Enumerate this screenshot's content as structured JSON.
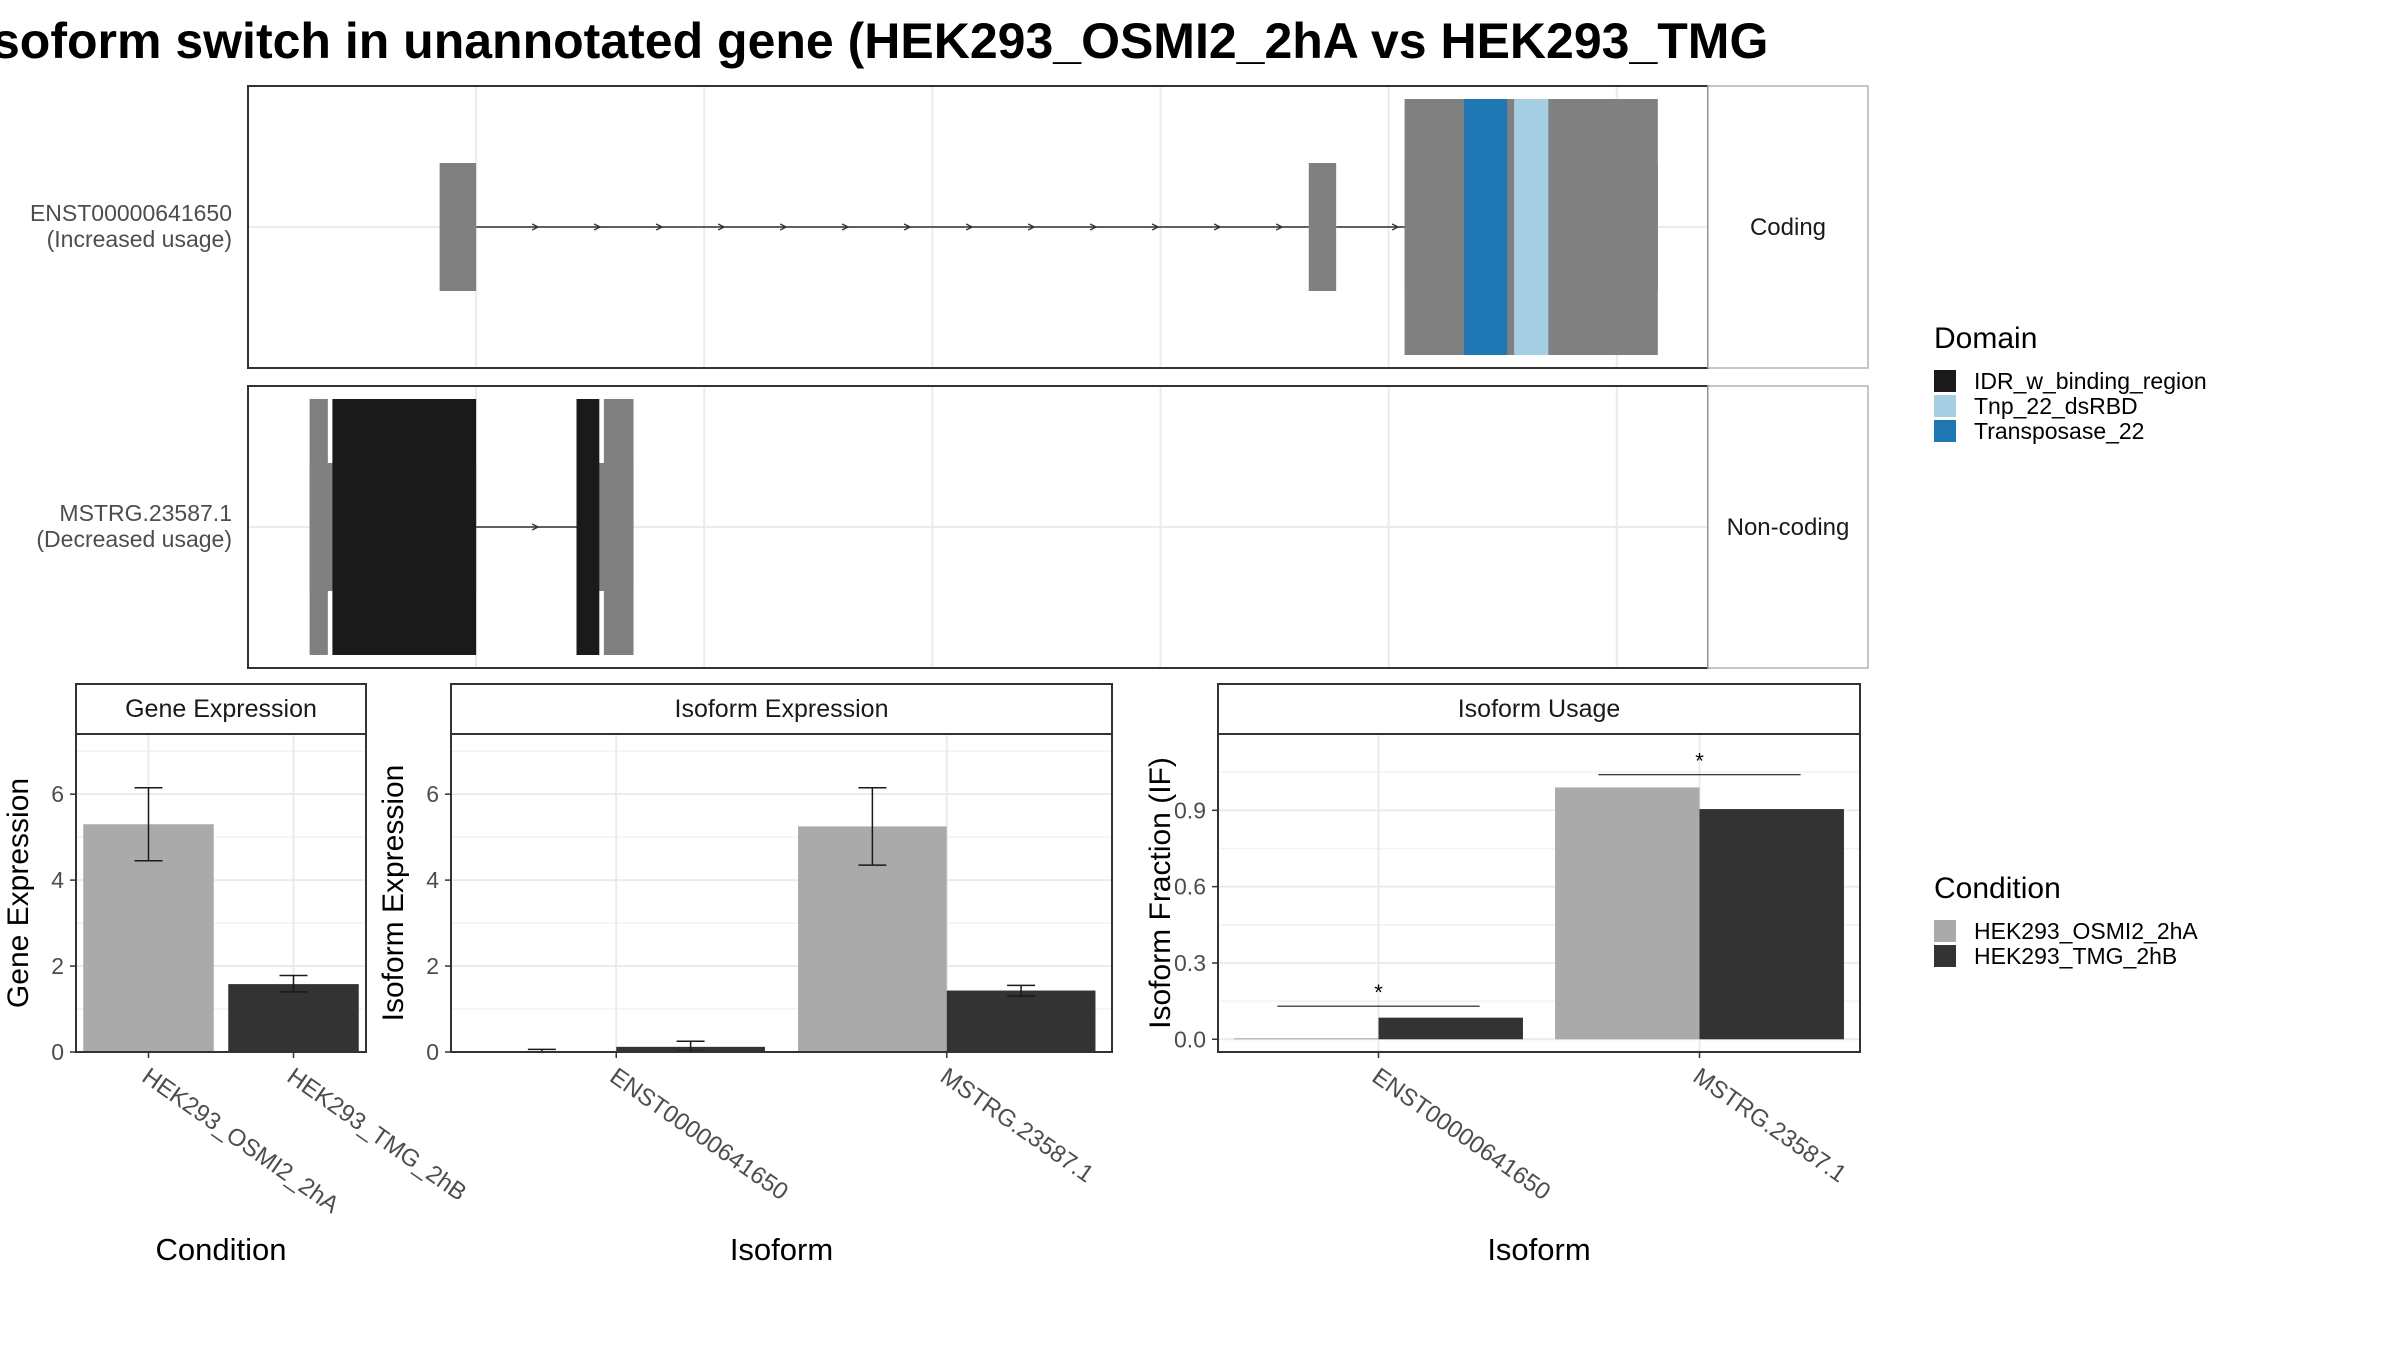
{
  "title": "soform switch in unannotated gene (HEK293_OSMI2_2hA vs HEK293_TMG",
  "colors": {
    "exon": "#808080",
    "cond_a": "#aaaaaa",
    "cond_b": "#333333",
    "idr": "#1a1a1a",
    "tnp": "#a6cee3",
    "transposase": "#1f78b4",
    "grid": "#ebebeb",
    "strip_bg": "#ffffff"
  },
  "structure": {
    "tracks": [
      {
        "label_line1": "ENST00000641650",
        "label_line2": "(Increased usage)",
        "facet": "Coding",
        "exons": [
          [
            0.84,
            1.0
          ],
          [
            4.65,
            4.77
          ],
          [
            5.07,
            6.18
          ]
        ],
        "cds": [
          [
            5.07,
            6.18
          ]
        ],
        "domains": [
          {
            "domain": "Transposase_22",
            "start": 5.33,
            "end": 5.52
          },
          {
            "domain": "Tnp_22_dsRBD",
            "start": 5.55,
            "end": 5.7
          }
        ]
      },
      {
        "label_line1": "MSTRG.23587.1",
        "label_line2": "(Decreased usage)",
        "facet": "Non-coding",
        "exons": [
          [
            0.27,
            1.0
          ],
          [
            1.44,
            1.69
          ]
        ],
        "cds": [
          [
            0.27,
            0.35
          ],
          [
            1.56,
            1.69
          ]
        ],
        "domains": [
          {
            "domain": "IDR_w_binding_region",
            "start": 0.37,
            "end": 1.0
          },
          {
            "domain": "IDR_w_binding_region",
            "start": 1.44,
            "end": 1.54
          }
        ]
      }
    ],
    "xlim": [
      0,
      6.4
    ]
  },
  "legend_domain": {
    "title": "Domain",
    "items": [
      {
        "label": "IDR_w_binding_region",
        "color": "#1a1a1a"
      },
      {
        "label": "Tnp_22_dsRBD",
        "color": "#a6cee3"
      },
      {
        "label": "Transposase_22",
        "color": "#1f78b4"
      }
    ]
  },
  "legend_condition": {
    "title": "Condition",
    "items": [
      {
        "label": "HEK293_OSMI2_2hA",
        "color": "#aaaaaa"
      },
      {
        "label": "HEK293_TMG_2hB",
        "color": "#333333"
      }
    ]
  },
  "chart_data": [
    {
      "type": "bar",
      "title": "Gene Expression",
      "xlabel": "Condition",
      "ylabel": "Gene Expression",
      "categories": [
        "HEK293_OSMI2_2hA",
        "HEK293_TMG_2hB"
      ],
      "values": [
        5.3,
        1.58
      ],
      "errors": [
        [
          4.45,
          6.15
        ],
        [
          1.4,
          1.78
        ]
      ],
      "ylim": [
        0,
        7.4
      ],
      "yticks": [
        "0",
        "2",
        "4",
        "6"
      ],
      "ytick_values": [
        0,
        2,
        4,
        6
      ]
    },
    {
      "type": "bar",
      "title": "Isoform Expression",
      "xlabel": "Isoform",
      "ylabel": "Isoform Expression",
      "categories": [
        "ENST00000641650",
        "MSTRG.23587.1"
      ],
      "series": [
        {
          "name": "HEK293_OSMI2_2hA",
          "values": [
            0.02,
            5.25
          ],
          "errors": [
            [
              0.0,
              0.06
            ],
            [
              4.35,
              6.15
            ]
          ]
        },
        {
          "name": "HEK293_TMG_2hB",
          "values": [
            0.12,
            1.43
          ],
          "errors": [
            [
              0.02,
              0.25
            ],
            [
              1.3,
              1.55
            ]
          ]
        }
      ],
      "ylim": [
        0,
        7.4
      ],
      "yticks": [
        "0",
        "2",
        "4",
        "6"
      ],
      "ytick_values": [
        0,
        2,
        4,
        6
      ]
    },
    {
      "type": "bar",
      "title": "Isoform Usage",
      "xlabel": "Isoform",
      "ylabel": "Isoform Fraction (IF)",
      "categories": [
        "ENST00000641650",
        "MSTRG.23587.1"
      ],
      "series": [
        {
          "name": "HEK293_OSMI2_2hA",
          "values": [
            0.004,
            0.99
          ]
        },
        {
          "name": "HEK293_TMG_2hB",
          "values": [
            0.085,
            0.905
          ]
        }
      ],
      "significance": [
        {
          "label": "*",
          "y": 0.13
        },
        {
          "label": "*",
          "y": 1.04
        }
      ],
      "ylim": [
        -0.05,
        1.2
      ],
      "yticks": [
        "0.0",
        "0.3",
        "0.6",
        "0.9"
      ],
      "ytick_values": [
        0,
        0.3,
        0.6,
        0.9
      ]
    }
  ]
}
